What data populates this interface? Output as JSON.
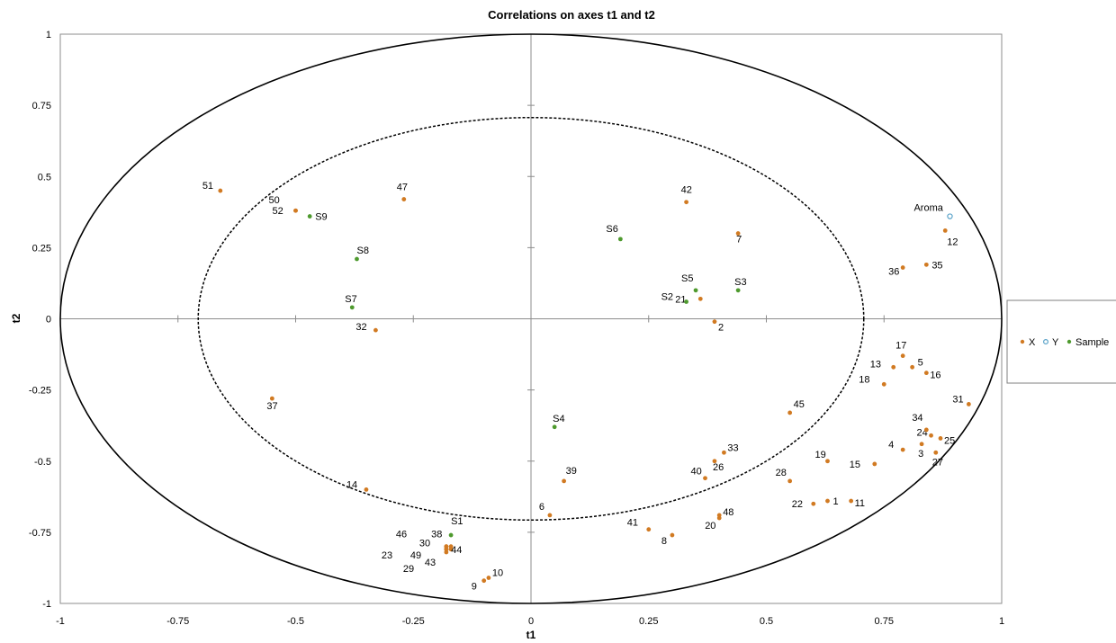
{
  "chart_data": {
    "type": "scatter",
    "title": "Correlations on axes t1 and t2",
    "xlabel": "t1",
    "ylabel": "t2",
    "xlim": [
      -1,
      1
    ],
    "ylim": [
      -1,
      1
    ],
    "xticks": [
      -1,
      -0.75,
      -0.5,
      -0.25,
      0,
      0.25,
      0.5,
      0.75,
      1
    ],
    "yticks": [
      -1,
      -0.75,
      -0.5,
      -0.25,
      0,
      0.25,
      0.5,
      0.75,
      1
    ],
    "xtick_labels": [
      "-1",
      "-0.75",
      "-0.5",
      "-0.25",
      "0",
      "0.25",
      "0.5",
      "0.75",
      "1"
    ],
    "ytick_labels": [
      "-1",
      "-0.75",
      "-0.5",
      "-0.25",
      "0",
      "0.25",
      "0.5",
      "0.75",
      "1"
    ],
    "grid": false,
    "correlation_circles": [
      1.0,
      0.707
    ],
    "legend_position": "right",
    "series": [
      {
        "name": "X",
        "color": "#D17A22",
        "marker": "filled-circle",
        "points": [
          {
            "label": "1",
            "x": 0.63,
            "y": -0.64
          },
          {
            "label": "2",
            "x": 0.39,
            "y": -0.01
          },
          {
            "label": "3",
            "x": 0.83,
            "y": -0.44
          },
          {
            "label": "4",
            "x": 0.79,
            "y": -0.46
          },
          {
            "label": "5",
            "x": 0.81,
            "y": -0.17
          },
          {
            "label": "6",
            "x": 0.04,
            "y": -0.69
          },
          {
            "label": "7",
            "x": 0.44,
            "y": 0.3
          },
          {
            "label": "8",
            "x": 0.3,
            "y": -0.76
          },
          {
            "label": "9",
            "x": -0.1,
            "y": -0.92
          },
          {
            "label": "10",
            "x": -0.09,
            "y": -0.91
          },
          {
            "label": "11",
            "x": 0.68,
            "y": -0.64
          },
          {
            "label": "12",
            "x": 0.88,
            "y": 0.31
          },
          {
            "label": "13",
            "x": 0.77,
            "y": -0.17
          },
          {
            "label": "14",
            "x": -0.35,
            "y": -0.6
          },
          {
            "label": "15",
            "x": 0.73,
            "y": -0.51
          },
          {
            "label": "16",
            "x": 0.84,
            "y": -0.19
          },
          {
            "label": "17",
            "x": 0.79,
            "y": -0.13
          },
          {
            "label": "18",
            "x": 0.75,
            "y": -0.23
          },
          {
            "label": "19",
            "x": 0.63,
            "y": -0.5
          },
          {
            "label": "20",
            "x": 0.4,
            "y": -0.7
          },
          {
            "label": "21",
            "x": 0.36,
            "y": 0.07
          },
          {
            "label": "22",
            "x": 0.6,
            "y": -0.65
          },
          {
            "label": "23",
            "x": -0.18,
            "y": -0.81
          },
          {
            "label": "24",
            "x": 0.85,
            "y": -0.41
          },
          {
            "label": "25",
            "x": 0.87,
            "y": -0.42
          },
          {
            "label": "26",
            "x": 0.39,
            "y": -0.5
          },
          {
            "label": "27",
            "x": 0.86,
            "y": -0.47
          },
          {
            "label": "28",
            "x": 0.55,
            "y": -0.57
          },
          {
            "label": "29",
            "x": -0.18,
            "y": -0.82
          },
          {
            "label": "30",
            "x": -0.18,
            "y": -0.8
          },
          {
            "label": "31",
            "x": 0.93,
            "y": -0.3
          },
          {
            "label": "32",
            "x": -0.33,
            "y": -0.04
          },
          {
            "label": "33",
            "x": 0.41,
            "y": -0.47
          },
          {
            "label": "34",
            "x": 0.84,
            "y": -0.39
          },
          {
            "label": "35",
            "x": 0.84,
            "y": 0.19
          },
          {
            "label": "36",
            "x": 0.79,
            "y": 0.18
          },
          {
            "label": "37",
            "x": -0.55,
            "y": -0.28
          },
          {
            "label": "38",
            "x": -0.17,
            "y": -0.8
          },
          {
            "label": "39",
            "x": 0.07,
            "y": -0.57
          },
          {
            "label": "40",
            "x": 0.37,
            "y": -0.56
          },
          {
            "label": "41",
            "x": 0.25,
            "y": -0.74
          },
          {
            "label": "42",
            "x": 0.33,
            "y": 0.41
          },
          {
            "label": "43",
            "x": -0.18,
            "y": -0.81
          },
          {
            "label": "44",
            "x": -0.17,
            "y": -0.81
          },
          {
            "label": "45",
            "x": 0.55,
            "y": -0.33
          },
          {
            "label": "46",
            "x": -0.18,
            "y": -0.8
          },
          {
            "label": "47",
            "x": -0.27,
            "y": 0.42
          },
          {
            "label": "48",
            "x": 0.4,
            "y": -0.69
          },
          {
            "label": "49",
            "x": -0.18,
            "y": -0.81
          },
          {
            "label": "50",
            "x": -0.5,
            "y": 0.38
          },
          {
            "label": "51",
            "x": -0.66,
            "y": 0.45
          },
          {
            "label": "52",
            "x": -0.5,
            "y": 0.38
          }
        ]
      },
      {
        "name": "Y",
        "color": "#5BA3C9",
        "marker": "open-circle",
        "points": [
          {
            "label": "Aroma",
            "x": 0.89,
            "y": 0.36
          }
        ]
      },
      {
        "name": "Sample",
        "color": "#4E9A2E",
        "marker": "filled-circle",
        "points": [
          {
            "label": "S1",
            "x": -0.17,
            "y": -0.76
          },
          {
            "label": "S2",
            "x": 0.33,
            "y": 0.06
          },
          {
            "label": "S3",
            "x": 0.44,
            "y": 0.1
          },
          {
            "label": "S4",
            "x": 0.05,
            "y": -0.38
          },
          {
            "label": "S5",
            "x": 0.35,
            "y": 0.1
          },
          {
            "label": "S6",
            "x": 0.19,
            "y": 0.28
          },
          {
            "label": "S7",
            "x": -0.38,
            "y": 0.04
          },
          {
            "label": "S8",
            "x": -0.37,
            "y": 0.21
          },
          {
            "label": "S9",
            "x": -0.47,
            "y": 0.36
          }
        ]
      }
    ]
  }
}
